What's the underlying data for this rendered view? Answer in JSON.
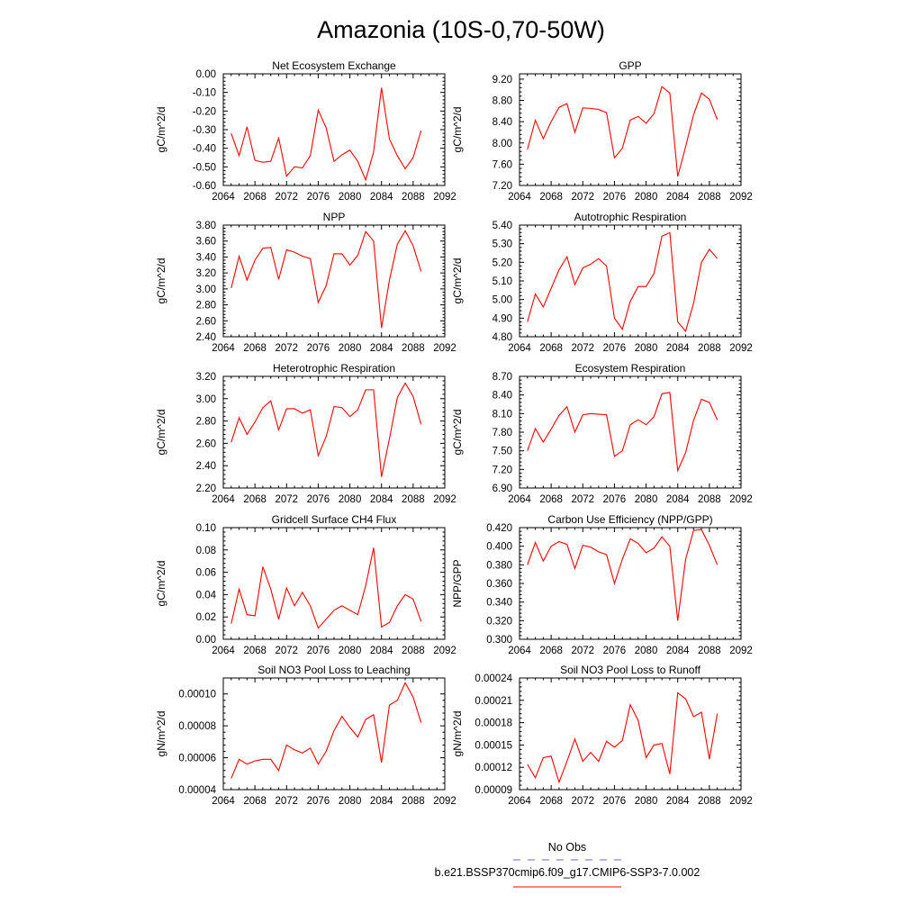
{
  "title": "Amazonia (10S-0,70-50W)",
  "colors": {
    "series": "#ff0000",
    "obs": "#6666dd",
    "axis": "#000000"
  },
  "legend": {
    "obs_label": "No Obs",
    "model_label": "b.e21.BSSP370cmip6.f09_g17.CMIP6-SSP3-7.0.002"
  },
  "chart_data": [
    {
      "type": "line",
      "title": "Net Ecosystem Exchange",
      "ylabel": "gC/m^2/d",
      "xlim": [
        2064,
        2092
      ],
      "ylim": [
        -0.6,
        0.0
      ],
      "xticks": [
        2064,
        2068,
        2072,
        2076,
        2080,
        2084,
        2088,
        2092
      ],
      "xtick_labels": [
        "2064",
        "2068",
        "2072",
        "2076",
        "2080",
        "2084",
        "2088",
        "2092"
      ],
      "yticks": [
        -0.6,
        -0.5,
        -0.4,
        -0.3,
        -0.2,
        -0.1,
        0.0
      ],
      "ytick_labels": [
        "-0.60",
        "-0.50",
        "-0.40",
        "-0.30",
        "-0.20",
        "-0.10",
        "0.00"
      ],
      "x": [
        2065,
        2066,
        2067,
        2068,
        2069,
        2070,
        2071,
        2072,
        2073,
        2074,
        2075,
        2076,
        2077,
        2078,
        2079,
        2080,
        2081,
        2082,
        2083,
        2084,
        2085,
        2086,
        2087,
        2088,
        2089
      ],
      "y": [
        -0.32,
        -0.44,
        -0.285,
        -0.465,
        -0.475,
        -0.47,
        -0.345,
        -0.55,
        -0.5,
        -0.505,
        -0.44,
        -0.195,
        -0.29,
        -0.47,
        -0.435,
        -0.41,
        -0.47,
        -0.57,
        -0.42,
        -0.075,
        -0.35,
        -0.44,
        -0.51,
        -0.45,
        -0.305
      ]
    },
    {
      "type": "line",
      "title": "GPP",
      "ylabel": "gC/m^2/d",
      "xlim": [
        2064,
        2092
      ],
      "ylim": [
        7.2,
        9.3
      ],
      "xticks": [
        2064,
        2068,
        2072,
        2076,
        2080,
        2084,
        2088,
        2092
      ],
      "xtick_labels": [
        "2064",
        "2068",
        "2072",
        "2076",
        "2080",
        "2084",
        "2088",
        "2092"
      ],
      "yticks": [
        7.2,
        7.6,
        8.0,
        8.4,
        8.8,
        9.2
      ],
      "ytick_labels": [
        "7.20",
        "7.60",
        "8.00",
        "8.40",
        "8.80",
        "9.20"
      ],
      "x": [
        2065,
        2066,
        2067,
        2068,
        2069,
        2070,
        2071,
        2072,
        2073,
        2074,
        2075,
        2076,
        2077,
        2078,
        2079,
        2080,
        2081,
        2082,
        2083,
        2084,
        2085,
        2086,
        2087,
        2088,
        2089
      ],
      "y": [
        7.88,
        8.43,
        8.08,
        8.4,
        8.67,
        8.74,
        8.2,
        8.66,
        8.65,
        8.63,
        8.57,
        7.72,
        7.9,
        8.43,
        8.5,
        8.37,
        8.55,
        9.06,
        8.94,
        7.37,
        7.93,
        8.53,
        8.94,
        8.82,
        8.44
      ]
    },
    {
      "type": "line",
      "title": "NPP",
      "ylabel": "gC/m^2/d",
      "xlim": [
        2064,
        2092
      ],
      "ylim": [
        2.4,
        3.8
      ],
      "xticks": [
        2064,
        2068,
        2072,
        2076,
        2080,
        2084,
        2088,
        2092
      ],
      "xtick_labels": [
        "2064",
        "2068",
        "2072",
        "2076",
        "2080",
        "2084",
        "2088",
        "2092"
      ],
      "yticks": [
        2.4,
        2.6,
        2.8,
        3.0,
        3.2,
        3.4,
        3.6,
        3.8
      ],
      "ytick_labels": [
        "2.40",
        "2.60",
        "2.80",
        "3.00",
        "3.20",
        "3.40",
        "3.60",
        "3.80"
      ],
      "x": [
        2065,
        2066,
        2067,
        2068,
        2069,
        2070,
        2071,
        2072,
        2073,
        2074,
        2075,
        2076,
        2077,
        2078,
        2079,
        2080,
        2081,
        2082,
        2083,
        2084,
        2085,
        2086,
        2087,
        2088,
        2089
      ],
      "y": [
        3.01,
        3.41,
        3.11,
        3.36,
        3.51,
        3.52,
        3.12,
        3.49,
        3.46,
        3.41,
        3.38,
        2.83,
        3.04,
        3.44,
        3.44,
        3.3,
        3.42,
        3.72,
        3.6,
        2.51,
        3.11,
        3.56,
        3.73,
        3.54,
        3.22
      ]
    },
    {
      "type": "line",
      "title": "Autotrophic Respiration",
      "ylabel": "gC/m^2/d",
      "xlim": [
        2064,
        2092
      ],
      "ylim": [
        4.8,
        5.4
      ],
      "xticks": [
        2064,
        2068,
        2072,
        2076,
        2080,
        2084,
        2088,
        2092
      ],
      "xtick_labels": [
        "2064",
        "2068",
        "2072",
        "2076",
        "2080",
        "2084",
        "2088",
        "2092"
      ],
      "yticks": [
        4.8,
        4.9,
        5.0,
        5.1,
        5.2,
        5.3,
        5.4
      ],
      "ytick_labels": [
        "4.80",
        "4.90",
        "5.00",
        "5.10",
        "5.20",
        "5.30",
        "5.40"
      ],
      "x": [
        2065,
        2066,
        2067,
        2068,
        2069,
        2070,
        2071,
        2072,
        2073,
        2074,
        2075,
        2076,
        2077,
        2078,
        2079,
        2080,
        2081,
        2082,
        2083,
        2084,
        2085,
        2086,
        2087,
        2088,
        2089
      ],
      "y": [
        4.88,
        5.03,
        4.96,
        5.06,
        5.16,
        5.23,
        5.08,
        5.17,
        5.19,
        5.22,
        5.18,
        4.9,
        4.84,
        4.99,
        5.07,
        5.07,
        5.14,
        5.34,
        5.36,
        4.88,
        4.83,
        4.98,
        5.2,
        5.27,
        5.22
      ]
    },
    {
      "type": "line",
      "title": "Heterotrophic Respiration",
      "ylabel": "gC/m^2/d",
      "xlim": [
        2064,
        2092
      ],
      "ylim": [
        2.2,
        3.2
      ],
      "xticks": [
        2064,
        2068,
        2072,
        2076,
        2080,
        2084,
        2088,
        2092
      ],
      "xtick_labels": [
        "2064",
        "2068",
        "2072",
        "2076",
        "2080",
        "2084",
        "2088",
        "2092"
      ],
      "yticks": [
        2.2,
        2.4,
        2.6,
        2.8,
        3.0,
        3.2
      ],
      "ytick_labels": [
        "2.20",
        "2.40",
        "2.60",
        "2.80",
        "3.00",
        "3.20"
      ],
      "x": [
        2065,
        2066,
        2067,
        2068,
        2069,
        2070,
        2071,
        2072,
        2073,
        2074,
        2075,
        2076,
        2077,
        2078,
        2079,
        2080,
        2081,
        2082,
        2083,
        2084,
        2085,
        2086,
        2087,
        2088,
        2089
      ],
      "y": [
        2.61,
        2.83,
        2.68,
        2.79,
        2.92,
        2.98,
        2.72,
        2.91,
        2.91,
        2.87,
        2.9,
        2.49,
        2.66,
        2.93,
        2.92,
        2.84,
        2.9,
        3.08,
        3.08,
        2.3,
        2.64,
        3.01,
        3.14,
        3.02,
        2.77
      ]
    },
    {
      "type": "line",
      "title": "Ecosystem Respiration",
      "ylabel": "gC/m^2/d",
      "xlim": [
        2064,
        2092
      ],
      "ylim": [
        6.9,
        8.7
      ],
      "xticks": [
        2064,
        2068,
        2072,
        2076,
        2080,
        2084,
        2088,
        2092
      ],
      "xtick_labels": [
        "2064",
        "2068",
        "2072",
        "2076",
        "2080",
        "2084",
        "2088",
        "2092"
      ],
      "yticks": [
        6.9,
        7.2,
        7.5,
        7.8,
        8.1,
        8.4,
        8.7
      ],
      "ytick_labels": [
        "6.90",
        "7.20",
        "7.50",
        "7.80",
        "8.10",
        "8.40",
        "8.70"
      ],
      "x": [
        2065,
        2066,
        2067,
        2068,
        2069,
        2070,
        2071,
        2072,
        2073,
        2074,
        2075,
        2076,
        2077,
        2078,
        2079,
        2080,
        2081,
        2082,
        2083,
        2084,
        2085,
        2086,
        2087,
        2088,
        2089
      ],
      "y": [
        7.5,
        7.86,
        7.64,
        7.85,
        8.07,
        8.21,
        7.8,
        8.08,
        8.1,
        8.09,
        8.08,
        7.41,
        7.5,
        7.92,
        8.0,
        7.92,
        8.05,
        8.42,
        8.44,
        7.18,
        7.47,
        7.99,
        8.33,
        8.28,
        8.0
      ]
    },
    {
      "type": "line",
      "title": "Gridcell Surface CH4 Flux",
      "ylabel": "gC/m^2/d",
      "xlim": [
        2064,
        2092
      ],
      "ylim": [
        0.0,
        0.1
      ],
      "xticks": [
        2064,
        2068,
        2072,
        2076,
        2080,
        2084,
        2088,
        2092
      ],
      "xtick_labels": [
        "2064",
        "2068",
        "2072",
        "2076",
        "2080",
        "2084",
        "2088",
        "2092"
      ],
      "yticks": [
        0.0,
        0.02,
        0.04,
        0.06,
        0.08,
        0.1
      ],
      "ytick_labels": [
        "0.00",
        "0.02",
        "0.04",
        "0.06",
        "0.08",
        "0.10"
      ],
      "x": [
        2065,
        2066,
        2067,
        2068,
        2069,
        2070,
        2071,
        2072,
        2073,
        2074,
        2075,
        2076,
        2077,
        2078,
        2079,
        2080,
        2081,
        2082,
        2083,
        2084,
        2085,
        2086,
        2087,
        2088,
        2089
      ],
      "y": [
        0.014,
        0.045,
        0.022,
        0.021,
        0.065,
        0.045,
        0.018,
        0.046,
        0.03,
        0.042,
        0.03,
        0.01,
        0.018,
        0.026,
        0.03,
        0.026,
        0.022,
        0.048,
        0.082,
        0.011,
        0.015,
        0.03,
        0.04,
        0.036,
        0.016
      ]
    },
    {
      "type": "line",
      "title": "Carbon Use Efficiency (NPP/GPP)",
      "ylabel": "NPP/GPP",
      "xlim": [
        2064,
        2092
      ],
      "ylim": [
        0.3,
        0.42
      ],
      "xticks": [
        2064,
        2068,
        2072,
        2076,
        2080,
        2084,
        2088,
        2092
      ],
      "xtick_labels": [
        "2064",
        "2068",
        "2072",
        "2076",
        "2080",
        "2084",
        "2088",
        "2092"
      ],
      "yticks": [
        0.3,
        0.32,
        0.34,
        0.36,
        0.38,
        0.4,
        0.42
      ],
      "ytick_labels": [
        "0.300",
        "0.320",
        "0.340",
        "0.360",
        "0.380",
        "0.400",
        "0.420"
      ],
      "x": [
        2065,
        2066,
        2067,
        2068,
        2069,
        2070,
        2071,
        2072,
        2073,
        2074,
        2075,
        2076,
        2077,
        2078,
        2079,
        2080,
        2081,
        2082,
        2083,
        2084,
        2085,
        2086,
        2087,
        2088,
        2089
      ],
      "y": [
        0.38,
        0.404,
        0.384,
        0.4,
        0.405,
        0.402,
        0.376,
        0.401,
        0.399,
        0.394,
        0.391,
        0.36,
        0.386,
        0.408,
        0.403,
        0.393,
        0.398,
        0.41,
        0.4,
        0.32,
        0.386,
        0.417,
        0.418,
        0.401,
        0.38
      ]
    },
    {
      "type": "line",
      "title": "Soil NO3 Pool Loss to Leaching",
      "ylabel": "gN/m^2/d",
      "xlim": [
        2064,
        2092
      ],
      "ylim": [
        4e-05,
        0.00011
      ],
      "xticks": [
        2064,
        2068,
        2072,
        2076,
        2080,
        2084,
        2088,
        2092
      ],
      "xtick_labels": [
        "2064",
        "2068",
        "2072",
        "2076",
        "2080",
        "2084",
        "2088",
        "2092"
      ],
      "yticks": [
        4e-05,
        6e-05,
        8e-05,
        0.0001
      ],
      "ytick_labels": [
        "0.00004",
        "0.00006",
        "0.00008",
        "0.00010"
      ],
      "x": [
        2065,
        2066,
        2067,
        2068,
        2069,
        2070,
        2071,
        2072,
        2073,
        2074,
        2075,
        2076,
        2077,
        2078,
        2079,
        2080,
        2081,
        2082,
        2083,
        2084,
        2085,
        2086,
        2087,
        2088,
        2089
      ],
      "y": [
        4.7e-05,
        5.9e-05,
        5.6e-05,
        5.8e-05,
        5.9e-05,
        5.9e-05,
        5.2e-05,
        6.8e-05,
        6.5e-05,
        6.3e-05,
        6.6e-05,
        5.6e-05,
        6.4e-05,
        7.7e-05,
        8.6e-05,
        7.9e-05,
        7.3e-05,
        8.4e-05,
        8.7e-05,
        5.7e-05,
        9.3e-05,
        9.6e-05,
        0.000107,
        9.8e-05,
        8.2e-05
      ]
    },
    {
      "type": "line",
      "title": "Soil NO3 Pool Loss to Runoff",
      "ylabel": "gN/m^2/d",
      "xlim": [
        2064,
        2092
      ],
      "ylim": [
        9e-05,
        0.00024
      ],
      "xticks": [
        2064,
        2068,
        2072,
        2076,
        2080,
        2084,
        2088,
        2092
      ],
      "xtick_labels": [
        "2064",
        "2068",
        "2072",
        "2076",
        "2080",
        "2084",
        "2088",
        "2092"
      ],
      "yticks": [
        9e-05,
        0.00012,
        0.00015,
        0.00018,
        0.00021,
        0.00024
      ],
      "ytick_labels": [
        "0.00009",
        "0.00012",
        "0.00015",
        "0.00018",
        "0.00021",
        "0.00024"
      ],
      "x": [
        2065,
        2066,
        2067,
        2068,
        2069,
        2070,
        2071,
        2072,
        2073,
        2074,
        2075,
        2076,
        2077,
        2078,
        2079,
        2080,
        2081,
        2082,
        2083,
        2084,
        2085,
        2086,
        2087,
        2088,
        2089
      ],
      "y": [
        0.000124,
        0.000106,
        0.000133,
        0.000135,
        0.0001,
        0.000128,
        0.000158,
        0.000128,
        0.00014,
        0.000128,
        0.000155,
        0.000147,
        0.000156,
        0.000204,
        0.000183,
        0.000133,
        0.00015,
        0.000152,
        0.000111,
        0.00022,
        0.000212,
        0.000188,
        0.000194,
        0.000131,
        0.000192
      ]
    }
  ]
}
